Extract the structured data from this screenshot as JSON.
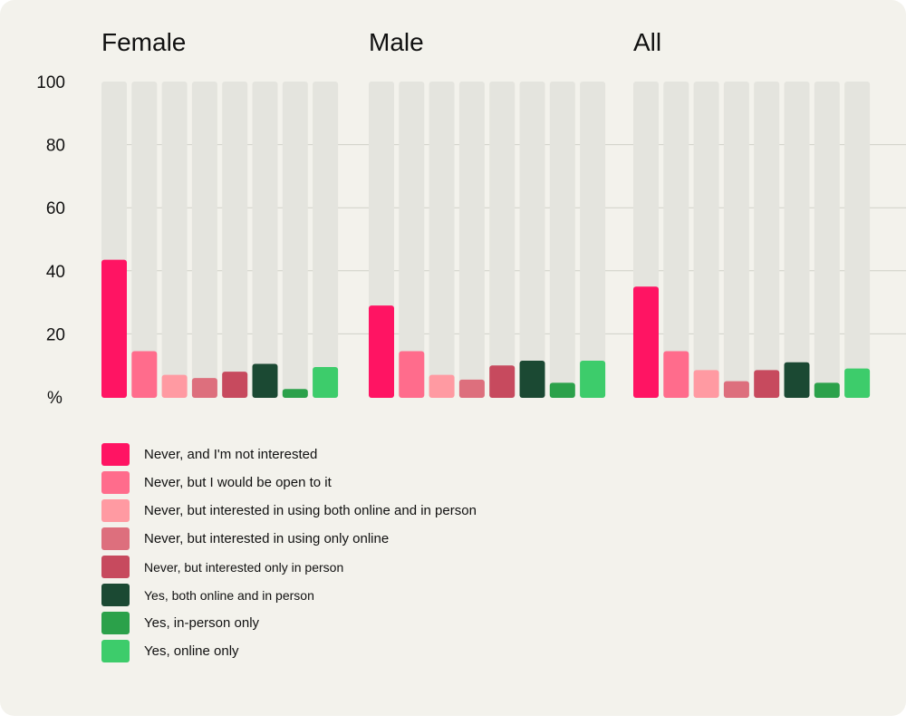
{
  "chart_data": {
    "type": "bar",
    "ylabel": "%",
    "ylim": [
      0,
      100
    ],
    "yticks": [
      100,
      80,
      60,
      40,
      20
    ],
    "grid": true,
    "groups": [
      "Female",
      "Male",
      "All"
    ],
    "series": [
      {
        "name": "Never, and I'm not interested",
        "color": "#ff1463",
        "values": [
          43.5,
          29,
          35
        ]
      },
      {
        "name": "Never, but I would be open to it",
        "color": "#ff6c8c",
        "values": [
          14.5,
          14.5,
          14.5
        ]
      },
      {
        "name": "Never, but interested in using both online and in person",
        "color": "#ff9aa2",
        "values": [
          7,
          7,
          8.5
        ]
      },
      {
        "name": "Never, but interested in using only online",
        "color": "#dd6f7d",
        "values": [
          6,
          5.5,
          5
        ]
      },
      {
        "name": "Never, but interested only in person",
        "color": "#c74a5e",
        "values": [
          8,
          10,
          8.5
        ]
      },
      {
        "name": "Yes, both online and in person",
        "color": "#1b4933",
        "values": [
          10.5,
          11.5,
          11
        ]
      },
      {
        "name": "Yes, in-person only",
        "color": "#2ba14a",
        "values": [
          2.5,
          4.5,
          4.5
        ]
      },
      {
        "name": "Yes, online only",
        "color": "#3dcc6b",
        "values": [
          9.5,
          11.5,
          9
        ]
      }
    ]
  }
}
